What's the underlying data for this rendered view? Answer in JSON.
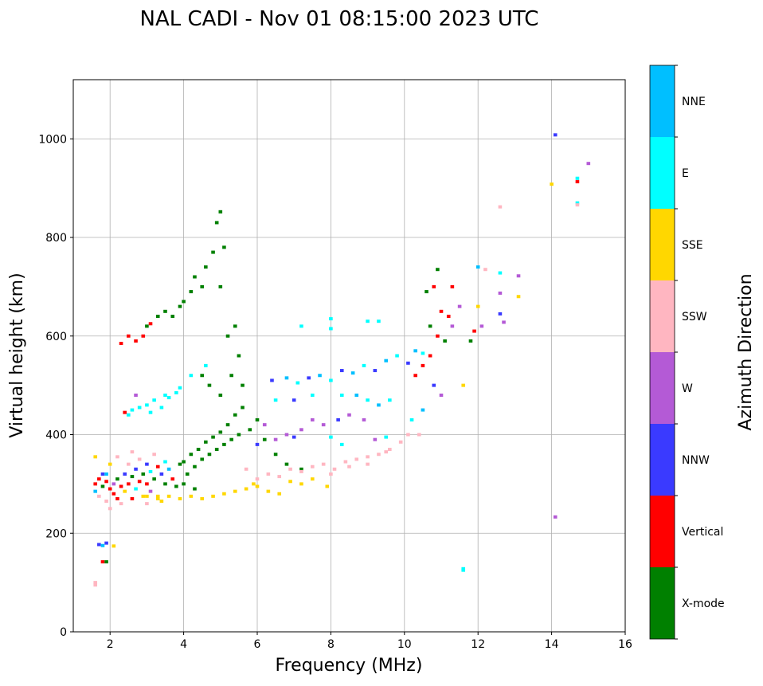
{
  "chart_data": {
    "type": "scatter",
    "title": "NAL CADI - Nov 01 08:15:00 2023 UTC",
    "xlabel": "Frequency (MHz)",
    "ylabel": "Virtual height (km)",
    "xlim": [
      1,
      16
    ],
    "ylim": [
      0,
      1120
    ],
    "xticks": [
      2,
      4,
      6,
      8,
      10,
      12,
      14,
      16
    ],
    "yticks": [
      0,
      200,
      400,
      600,
      800,
      1000
    ],
    "grid": true,
    "colorbar": {
      "label": "Azimuth Direction",
      "categories": [
        "X-mode",
        "Vertical",
        "NNW",
        "W",
        "SSW",
        "SSE",
        "E",
        "NNE"
      ],
      "colors": [
        "#008000",
        "#ff0000",
        "#3a3aff",
        "#b45ad6",
        "#ffb6c1",
        "#ffd700",
        "#00ffff",
        "#00bfff"
      ]
    },
    "points_format": [
      "frequency_mhz",
      "virtual_height_km",
      "direction_index"
    ],
    "points": [
      [
        1.6,
        300,
        1
      ],
      [
        1.6,
        285,
        7
      ],
      [
        1.7,
        310,
        1
      ],
      [
        1.7,
        275,
        4
      ],
      [
        1.8,
        295,
        0
      ],
      [
        1.8,
        320,
        2
      ],
      [
        1.9,
        305,
        1
      ],
      [
        1.9,
        265,
        4
      ],
      [
        2.0,
        290,
        1
      ],
      [
        2.0,
        340,
        5
      ],
      [
        2.1,
        300,
        3
      ],
      [
        2.1,
        280,
        1
      ],
      [
        2.2,
        310,
        0
      ],
      [
        2.2,
        355,
        4
      ],
      [
        2.3,
        295,
        1
      ],
      [
        2.3,
        260,
        4
      ],
      [
        2.4,
        320,
        2
      ],
      [
        2.4,
        285,
        5
      ],
      [
        2.5,
        300,
        1
      ],
      [
        2.5,
        340,
        4
      ],
      [
        2.6,
        315,
        0
      ],
      [
        2.6,
        270,
        1
      ],
      [
        2.7,
        330,
        2
      ],
      [
        2.7,
        290,
        6
      ],
      [
        2.8,
        305,
        1
      ],
      [
        2.8,
        350,
        4
      ],
      [
        2.9,
        320,
        0
      ],
      [
        2.9,
        275,
        5
      ],
      [
        3.0,
        340,
        2
      ],
      [
        3.0,
        300,
        1
      ],
      [
        3.1,
        325,
        6
      ],
      [
        3.1,
        285,
        3
      ],
      [
        3.2,
        310,
        0
      ],
      [
        3.2,
        360,
        4
      ],
      [
        3.3,
        335,
        1
      ],
      [
        3.3,
        275,
        5
      ],
      [
        3.4,
        320,
        2
      ],
      [
        3.5,
        300,
        0
      ],
      [
        3.5,
        345,
        6
      ],
      [
        3.6,
        330,
        7
      ],
      [
        3.7,
        310,
        1
      ],
      [
        3.8,
        295,
        0
      ],
      [
        3.9,
        340,
        0
      ],
      [
        1.6,
        355,
        5
      ],
      [
        2.0,
        250,
        4
      ],
      [
        1.9,
        320,
        7
      ],
      [
        2.2,
        270,
        1
      ],
      [
        2.6,
        365,
        4
      ],
      [
        3.0,
        260,
        4
      ],
      [
        3.4,
        265,
        5
      ],
      [
        4.0,
        345,
        0
      ],
      [
        4.1,
        320,
        0
      ],
      [
        4.2,
        360,
        0
      ],
      [
        4.3,
        335,
        0
      ],
      [
        4.4,
        370,
        0
      ],
      [
        4.5,
        350,
        0
      ],
      [
        4.6,
        385,
        0
      ],
      [
        4.7,
        360,
        0
      ],
      [
        4.8,
        395,
        0
      ],
      [
        4.9,
        370,
        0
      ],
      [
        5.0,
        405,
        0
      ],
      [
        5.1,
        380,
        0
      ],
      [
        5.2,
        420,
        0
      ],
      [
        5.3,
        390,
        0
      ],
      [
        5.4,
        440,
        0
      ],
      [
        5.5,
        400,
        0
      ],
      [
        5.6,
        455,
        0
      ],
      [
        5.8,
        410,
        0
      ],
      [
        6.0,
        430,
        0
      ],
      [
        6.2,
        390,
        0
      ],
      [
        6.5,
        360,
        0
      ],
      [
        6.8,
        340,
        0
      ],
      [
        7.2,
        330,
        0
      ],
      [
        4.0,
        300,
        0
      ],
      [
        4.3,
        290,
        0
      ],
      [
        3.0,
        620,
        0
      ],
      [
        3.3,
        640,
        0
      ],
      [
        3.5,
        650,
        0
      ],
      [
        3.7,
        640,
        0
      ],
      [
        3.9,
        660,
        0
      ],
      [
        4.0,
        670,
        0
      ],
      [
        4.2,
        690,
        0
      ],
      [
        4.3,
        720,
        0
      ],
      [
        4.5,
        700,
        0
      ],
      [
        4.6,
        740,
        0
      ],
      [
        4.8,
        770,
        0
      ],
      [
        4.9,
        830,
        0
      ],
      [
        5.0,
        852,
        0
      ],
      [
        5.1,
        780,
        0
      ],
      [
        5.0,
        700,
        0
      ],
      [
        5.2,
        600,
        0
      ],
      [
        5.4,
        620,
        0
      ],
      [
        5.5,
        560,
        0
      ],
      [
        5.3,
        520,
        0
      ],
      [
        5.0,
        480,
        0
      ],
      [
        5.6,
        500,
        0
      ],
      [
        4.7,
        500,
        0
      ],
      [
        4.5,
        520,
        0
      ],
      [
        2.3,
        585,
        1
      ],
      [
        2.5,
        600,
        1
      ],
      [
        2.7,
        590,
        1
      ],
      [
        2.9,
        600,
        1
      ],
      [
        3.1,
        625,
        1
      ],
      [
        3.0,
        275,
        5
      ],
      [
        3.3,
        270,
        5
      ],
      [
        3.6,
        275,
        5
      ],
      [
        3.9,
        270,
        5
      ],
      [
        4.2,
        275,
        5
      ],
      [
        4.5,
        270,
        5
      ],
      [
        4.8,
        275,
        5
      ],
      [
        5.1,
        280,
        5
      ],
      [
        5.4,
        285,
        5
      ],
      [
        5.7,
        290,
        5
      ],
      [
        6.0,
        295,
        5
      ],
      [
        6.3,
        285,
        5
      ],
      [
        6.6,
        280,
        5
      ],
      [
        6.9,
        305,
        5
      ],
      [
        7.2,
        300,
        5
      ],
      [
        7.5,
        310,
        5
      ],
      [
        7.9,
        295,
        5
      ],
      [
        5.9,
        300,
        5
      ],
      [
        6.0,
        310,
        4
      ],
      [
        6.3,
        320,
        4
      ],
      [
        6.6,
        315,
        4
      ],
      [
        6.9,
        330,
        4
      ],
      [
        7.2,
        325,
        4
      ],
      [
        7.5,
        335,
        4
      ],
      [
        7.8,
        340,
        4
      ],
      [
        8.1,
        330,
        4
      ],
      [
        8.4,
        345,
        4
      ],
      [
        8.7,
        350,
        4
      ],
      [
        9.0,
        355,
        4
      ],
      [
        9.3,
        360,
        4
      ],
      [
        9.6,
        370,
        4
      ],
      [
        9.9,
        385,
        4
      ],
      [
        10.1,
        400,
        4
      ],
      [
        8.0,
        320,
        4
      ],
      [
        8.5,
        335,
        4
      ],
      [
        9.0,
        340,
        4
      ],
      [
        9.5,
        365,
        4
      ],
      [
        5.7,
        330,
        4
      ],
      [
        6.2,
        420,
        3
      ],
      [
        6.5,
        390,
        3
      ],
      [
        6.8,
        400,
        3
      ],
      [
        7.2,
        410,
        3
      ],
      [
        7.5,
        430,
        3
      ],
      [
        7.8,
        420,
        3
      ],
      [
        8.2,
        430,
        2
      ],
      [
        8.5,
        440,
        3
      ],
      [
        8.9,
        430,
        3
      ],
      [
        9.2,
        390,
        3
      ],
      [
        6.0,
        380,
        2
      ],
      [
        7.0,
        395,
        2
      ],
      [
        8.0,
        395,
        6
      ],
      [
        8.3,
        380,
        6
      ],
      [
        9.5,
        395,
        6
      ],
      [
        6.4,
        510,
        2
      ],
      [
        6.8,
        515,
        7
      ],
      [
        7.1,
        505,
        6
      ],
      [
        7.4,
        515,
        2
      ],
      [
        7.7,
        520,
        7
      ],
      [
        8.0,
        510,
        6
      ],
      [
        8.3,
        530,
        2
      ],
      [
        8.6,
        525,
        7
      ],
      [
        8.9,
        540,
        6
      ],
      [
        9.2,
        530,
        2
      ],
      [
        9.5,
        550,
        7
      ],
      [
        9.8,
        560,
        6
      ],
      [
        10.1,
        545,
        2
      ],
      [
        10.3,
        570,
        7
      ],
      [
        10.5,
        565,
        6
      ],
      [
        8.7,
        480,
        7
      ],
      [
        9.0,
        470,
        6
      ],
      [
        9.3,
        460,
        7
      ],
      [
        9.6,
        470,
        6
      ],
      [
        8.3,
        480,
        6
      ],
      [
        7.5,
        480,
        6
      ],
      [
        7.0,
        470,
        2
      ],
      [
        6.5,
        470,
        6
      ],
      [
        9.0,
        630,
        6
      ],
      [
        9.3,
        630,
        6
      ],
      [
        8.0,
        635,
        6
      ],
      [
        7.2,
        620,
        6
      ],
      [
        8.0,
        615,
        6
      ],
      [
        10.3,
        520,
        1
      ],
      [
        10.5,
        540,
        1
      ],
      [
        10.7,
        560,
        1
      ],
      [
        10.9,
        600,
        1
      ],
      [
        11.0,
        650,
        1
      ],
      [
        11.2,
        640,
        1
      ],
      [
        11.3,
        700,
        1
      ],
      [
        10.8,
        700,
        1
      ],
      [
        10.6,
        690,
        0
      ],
      [
        10.7,
        620,
        0
      ],
      [
        10.9,
        735,
        0
      ],
      [
        11.1,
        590,
        0
      ],
      [
        11.8,
        590,
        0
      ],
      [
        10.5,
        450,
        7
      ],
      [
        10.8,
        500,
        2
      ],
      [
        11.0,
        480,
        3
      ],
      [
        11.3,
        620,
        3
      ],
      [
        11.5,
        660,
        3
      ],
      [
        11.6,
        500,
        5
      ],
      [
        12.0,
        660,
        5
      ],
      [
        12.0,
        740,
        7
      ],
      [
        12.2,
        735,
        4
      ],
      [
        12.1,
        620,
        3
      ],
      [
        12.6,
        728,
        6
      ],
      [
        12.6,
        687,
        3
      ],
      [
        12.6,
        645,
        2
      ],
      [
        12.7,
        628,
        3
      ],
      [
        13.1,
        722,
        3
      ],
      [
        13.1,
        680,
        5
      ],
      [
        11.9,
        610,
        1
      ],
      [
        10.2,
        430,
        6
      ],
      [
        10.4,
        400,
        4
      ],
      [
        14.1,
        1008,
        2
      ],
      [
        14.7,
        920,
        6
      ],
      [
        14.7,
        913,
        1
      ],
      [
        14.7,
        870,
        6
      ],
      [
        14.7,
        866,
        4
      ],
      [
        15.0,
        950,
        3
      ],
      [
        14.0,
        908,
        5
      ],
      [
        12.6,
        862,
        4
      ],
      [
        14.1,
        233,
        3
      ],
      [
        11.6,
        125,
        6
      ],
      [
        11.6,
        128,
        6
      ],
      [
        1.6,
        95,
        4
      ],
      [
        1.6,
        100,
        4
      ],
      [
        1.7,
        177,
        2
      ],
      [
        1.9,
        180,
        2
      ],
      [
        2.1,
        174,
        5
      ],
      [
        1.8,
        142,
        1
      ],
      [
        1.9,
        142,
        0
      ],
      [
        1.8,
        175,
        7
      ],
      [
        2.5,
        440,
        6
      ],
      [
        2.6,
        450,
        6
      ],
      [
        2.8,
        455,
        6
      ],
      [
        3.0,
        460,
        6
      ],
      [
        3.1,
        445,
        6
      ],
      [
        3.2,
        470,
        6
      ],
      [
        3.4,
        455,
        6
      ],
      [
        3.5,
        480,
        6
      ],
      [
        3.6,
        475,
        6
      ],
      [
        3.8,
        485,
        6
      ],
      [
        3.9,
        495,
        6
      ],
      [
        4.2,
        520,
        6
      ],
      [
        4.6,
        540,
        6
      ],
      [
        2.7,
        480,
        3
      ],
      [
        2.4,
        445,
        1
      ]
    ]
  }
}
